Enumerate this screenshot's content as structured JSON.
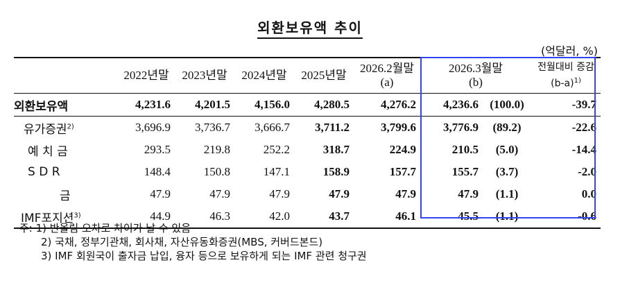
{
  "title": "외환보유액 추이",
  "unit": "(억달러, %)",
  "columns": {
    "y2022": "2022년말",
    "y2023": "2023년말",
    "y2024": "2024년말",
    "y2025": "2025년말",
    "feb2026": "2026.2월말",
    "feb2026_sub": "(a)",
    "mar2026": "2026.3월말",
    "mar2026_sub": "(b)",
    "change": "전월대비 증감",
    "change_sub": "(b-a)",
    "change_note": "1)"
  },
  "rows": [
    {
      "label": "외환보유액",
      "note": "",
      "y2022": "4,231.6",
      "y2023": "4,201.5",
      "y2024": "4,156.0",
      "y2025": "4,280.5",
      "feb": "4,276.2",
      "mar": "4,236.6",
      "share": "(100.0)",
      "change": "-39.7"
    },
    {
      "label": "유가증권",
      "note": "2)",
      "y2022": "3,696.9",
      "y2023": "3,736.7",
      "y2024": "3,666.7",
      "y2025": "3,711.2",
      "feb": "3,799.6",
      "mar": "3,776.9",
      "share": "(89.2)",
      "change": "-22.6"
    },
    {
      "label": "예 치 금",
      "note": "",
      "y2022": "293.5",
      "y2023": "219.8",
      "y2024": "252.2",
      "y2025": "318.7",
      "feb": "224.9",
      "mar": "210.5",
      "share": "(5.0)",
      "change": "-14.4"
    },
    {
      "label": "S D R",
      "note": "",
      "y2022": "148.4",
      "y2023": "150.8",
      "y2024": "147.1",
      "y2025": "158.9",
      "feb": "157.7",
      "mar": "155.7",
      "share": "(3.7)",
      "change": "-2.0"
    },
    {
      "label": "금",
      "note": "",
      "y2022": "47.9",
      "y2023": "47.9",
      "y2024": "47.9",
      "y2025": "47.9",
      "feb": "47.9",
      "mar": "47.9",
      "share": "(1.1)",
      "change": "0.0"
    },
    {
      "label": "IMF포지션",
      "note": "3)",
      "y2022": "44.9",
      "y2023": "46.3",
      "y2024": "42.0",
      "y2025": "43.7",
      "feb": "46.1",
      "mar": "45.5",
      "share": "(1.1)",
      "change": "-0.6"
    }
  ],
  "notes": [
    "주: 1) 반올림 오차로 차이가 날 수 있음",
    "2) 국채, 정부기관채, 회사채, 자산유동화증권(MBS, 커버드본드)",
    "3) IMF 회원국이 출자금 납입, 융자 등으로 보유하게 되는 IMF 관련 청구권"
  ]
}
